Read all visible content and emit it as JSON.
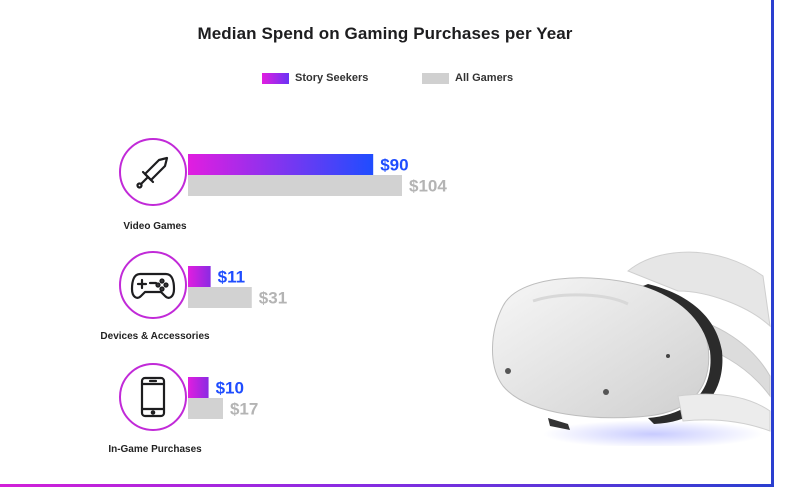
{
  "chart_data": {
    "type": "bar",
    "title": "Median Spend on Gaming Purchases per Year",
    "categories": [
      "Video Games",
      "Devices & Accessories",
      "In-Game Purchases"
    ],
    "series": [
      {
        "name": "Story Seekers",
        "values": [
          90,
          11,
          10
        ],
        "labels": [
          "$90",
          "$11",
          "$10"
        ]
      },
      {
        "name": "All Gamers",
        "values": [
          104,
          31,
          17
        ],
        "labels": [
          "$104",
          "$31",
          "$17"
        ]
      }
    ],
    "xlim": [
      0,
      104
    ],
    "orientation": "horizontal",
    "legend_position": "top"
  },
  "icons": [
    "sword-icon",
    "gamepad-icon",
    "smartphone-icon"
  ],
  "colors": {
    "story_seekers_start": "#e21de0",
    "story_seekers_end": "#1f4dff",
    "all_gamers": "#d2d2d2",
    "story_label": "#1f4dff",
    "all_label": "#b4b4b4",
    "frame_blue": "#2a3fd0",
    "frame_magenta": "#d21fd8"
  }
}
